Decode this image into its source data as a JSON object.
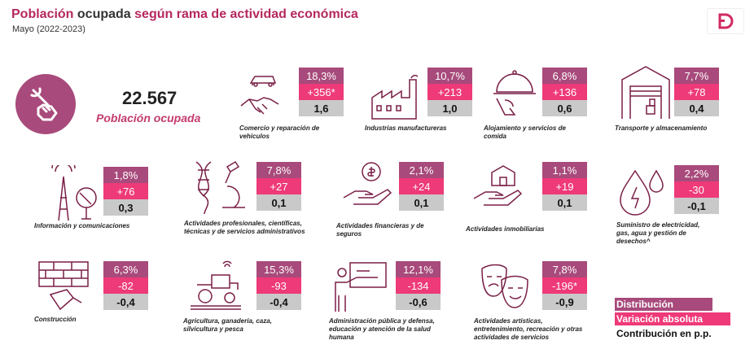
{
  "header": {
    "title_part1": "Población",
    "title_part2": "ocupada",
    "title_part3": "según rama de actividad económica",
    "subtitle": "Mayo (2022-2023)"
  },
  "hero": {
    "value": "22.567",
    "label": "Población ocupada",
    "icon": "wrench-hand-icon"
  },
  "colors": {
    "distribucion": "#a84a7b",
    "variacion": "#ee3a78",
    "contribucion": "#c9c9c9",
    "accent_text": "#c43b6e"
  },
  "sectors": [
    {
      "label": "Comercio y reparación de vehículos",
      "pct": "18,3%",
      "abs": "+356*",
      "pp": "1,6",
      "icon": "car-handshake-icon"
    },
    {
      "label": "Industrias manufactureras",
      "pct": "10,7%",
      "abs": "+213",
      "pp": "1,0",
      "icon": "factory-icon"
    },
    {
      "label": "Alojamiento y servicios de comida",
      "pct": "6,8%",
      "abs": "+136",
      "pp": "0,6",
      "icon": "cloche-icon"
    },
    {
      "label": "Transporte y almacenamiento",
      "pct": "7,7%",
      "abs": "+78",
      "pp": "0,4",
      "icon": "warehouse-icon"
    },
    {
      "label": "Información y comunicaciones",
      "pct": "1,8%",
      "abs": "+76",
      "pp": "0,3",
      "icon": "antenna-icon"
    },
    {
      "label": "Actividades profesionales, científicas, técnicas y de servicios administrativos",
      "pct": "7,8%",
      "abs": "+27",
      "pp": "0,1",
      "icon": "dna-microscope-icon"
    },
    {
      "label": "Actividades financieras y de seguros",
      "pct": "2,1%",
      "abs": "+24",
      "pp": "0,1",
      "icon": "coin-hand-icon"
    },
    {
      "label": "Actividades inmobiliarias",
      "pct": "1,1%",
      "abs": "+19",
      "pp": "0,1",
      "icon": "house-hand-icon"
    },
    {
      "label": "Suministro de electricidad, gas, agua y gestión de desechos^",
      "pct": "2,2%",
      "abs": "-30",
      "pp": "-0,1",
      "icon": "water-energy-icon"
    },
    {
      "label": "Construcción",
      "pct": "6,3%",
      "abs": "-82",
      "pp": "-0,4",
      "icon": "bricks-trowel-icon"
    },
    {
      "label": "Agricultura, ganadería, caza, silvicultura y pesca",
      "pct": "15,3%",
      "abs": "-93",
      "pp": "-0,4",
      "icon": "tractor-icon"
    },
    {
      "label": "Administración pública y defensa, educación y atención de la salud humana",
      "pct": "12,1%",
      "abs": "-134",
      "pp": "-0,6",
      "icon": "teacher-board-icon"
    },
    {
      "label": "Actividades artísticas, entretenimiento, recreación y otras actividades de servicios",
      "pct": "7,8%",
      "abs": "-196*",
      "pp": "-0,9",
      "icon": "theater-masks-icon"
    }
  ],
  "legend": {
    "distribucion": "Distribución",
    "variacion": "Variación absoluta",
    "contribucion": "Contribución en p.p."
  }
}
